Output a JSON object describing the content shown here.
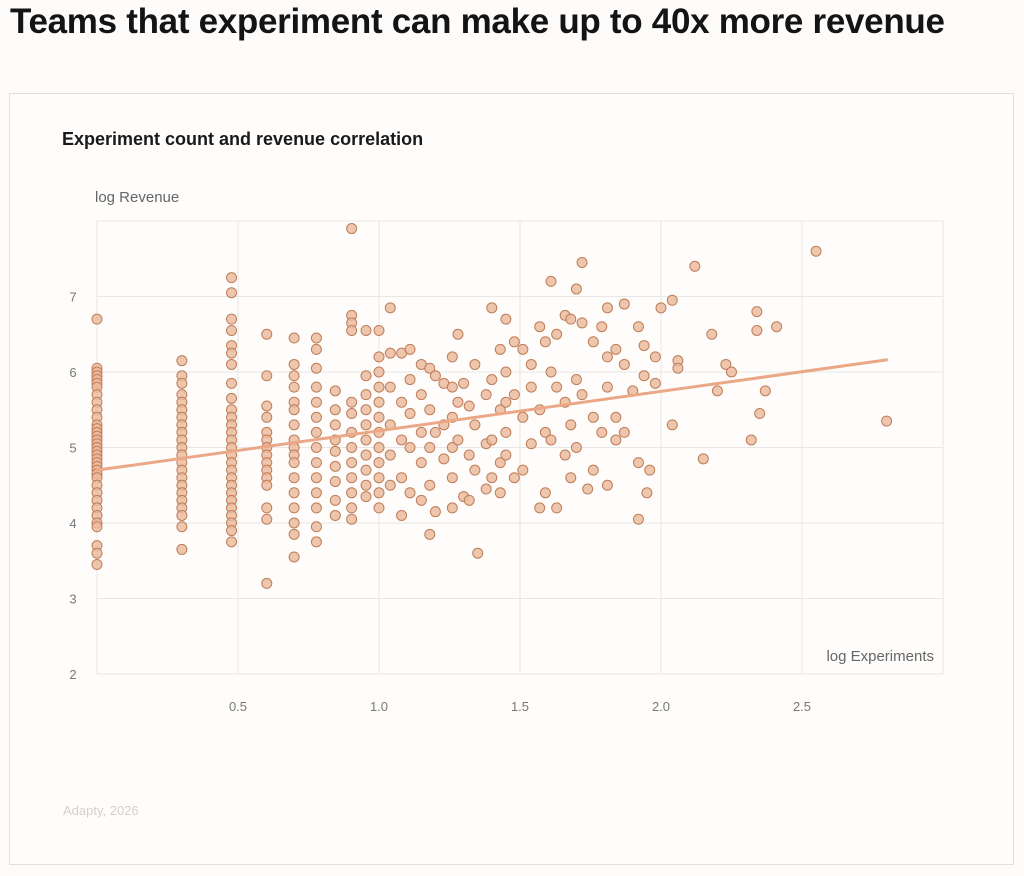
{
  "headline": "Teams that experiment can make up to 40x more revenue",
  "source": "Adapty, 2026",
  "colors": {
    "point_fill": "#ebbb9f",
    "point_stroke": "#bf7d58",
    "trend": "#eba887",
    "grid": "#e8e6e6"
  },
  "chart_data": {
    "type": "scatter",
    "title": "Experiment count and revenue correlation",
    "xlabel": "log Experiments",
    "ylabel": "log Revenue",
    "xlim": [
      0,
      3
    ],
    "ylim": [
      2,
      8
    ],
    "xticks": [
      "0.5",
      "1.0",
      "1.5",
      "2.0",
      "2.5"
    ],
    "yticks": [
      "2",
      "3",
      "4",
      "5",
      "6",
      "7"
    ],
    "grid": true,
    "trendline": {
      "x": [
        0,
        2.8
      ],
      "y": [
        4.7,
        6.16
      ]
    },
    "columns": [
      {
        "x": 0,
        "y": [
          6.7,
          6.05,
          6.0,
          5.95,
          5.9,
          5.85,
          5.8,
          5.7,
          5.6,
          5.5,
          5.4,
          5.3,
          5.25,
          5.2,
          5.15,
          5.1,
          5.05,
          5.0,
          4.95,
          4.9,
          4.85,
          4.8,
          4.75,
          4.7,
          4.65,
          4.6,
          4.5,
          4.4,
          4.3,
          4.2,
          4.1,
          4.0,
          3.95,
          3.7,
          3.6,
          3.45
        ]
      },
      {
        "x": 0.301,
        "y": [
          6.15,
          5.95,
          5.85,
          5.7,
          5.6,
          5.5,
          5.4,
          5.3,
          5.2,
          5.1,
          5.0,
          4.9,
          4.8,
          4.7,
          4.6,
          4.5,
          4.4,
          4.3,
          4.2,
          4.1,
          3.95,
          3.65
        ]
      },
      {
        "x": 0.477,
        "y": [
          7.25,
          7.05,
          6.7,
          6.55,
          6.35,
          6.25,
          6.1,
          5.85,
          5.65,
          5.5,
          5.4,
          5.3,
          5.2,
          5.1,
          5.0,
          4.9,
          4.8,
          4.7,
          4.6,
          4.5,
          4.4,
          4.3,
          4.2,
          4.1,
          4.0,
          3.9,
          3.75
        ]
      },
      {
        "x": 0.602,
        "y": [
          6.5,
          5.95,
          5.55,
          5.4,
          5.2,
          5.1,
          5.0,
          4.9,
          4.8,
          4.7,
          4.6,
          4.5,
          4.2,
          4.05,
          3.2
        ]
      },
      {
        "x": 0.699,
        "y": [
          6.45,
          6.1,
          5.95,
          5.8,
          5.6,
          5.5,
          5.3,
          5.1,
          5.0,
          4.9,
          4.8,
          4.6,
          4.4,
          4.2,
          4.0,
          3.85,
          3.55
        ]
      },
      {
        "x": 0.778,
        "y": [
          6.45,
          6.3,
          6.05,
          5.8,
          5.6,
          5.4,
          5.2,
          5.0,
          4.8,
          4.6,
          4.4,
          4.2,
          3.95,
          3.75
        ]
      },
      {
        "x": 0.845,
        "y": [
          5.75,
          5.5,
          5.3,
          5.1,
          4.95,
          4.75,
          4.55,
          4.3,
          4.1
        ]
      },
      {
        "x": 0.903,
        "y": [
          7.9,
          6.75,
          6.65,
          6.55,
          5.6,
          5.45,
          5.2,
          5.0,
          4.8,
          4.6,
          4.4,
          4.2,
          4.05
        ]
      },
      {
        "x": 0.954,
        "y": [
          6.55,
          5.95,
          5.7,
          5.5,
          5.3,
          5.1,
          4.9,
          4.7,
          4.5,
          4.35
        ]
      },
      {
        "x": 1.0,
        "y": [
          6.55,
          6.2,
          6.0,
          5.8,
          5.6,
          5.4,
          5.2,
          5.0,
          4.8,
          4.6,
          4.4,
          4.2
        ]
      }
    ],
    "points": [
      [
        1.04,
        6.85
      ],
      [
        1.04,
        6.25
      ],
      [
        1.04,
        5.8
      ],
      [
        1.04,
        5.3
      ],
      [
        1.04,
        4.9
      ],
      [
        1.04,
        4.5
      ],
      [
        1.08,
        6.25
      ],
      [
        1.08,
        5.6
      ],
      [
        1.08,
        5.1
      ],
      [
        1.08,
        4.6
      ],
      [
        1.08,
        4.1
      ],
      [
        1.11,
        6.3
      ],
      [
        1.11,
        5.9
      ],
      [
        1.11,
        5.45
      ],
      [
        1.11,
        5.0
      ],
      [
        1.11,
        4.4
      ],
      [
        1.15,
        6.1
      ],
      [
        1.15,
        5.7
      ],
      [
        1.15,
        5.2
      ],
      [
        1.15,
        4.8
      ],
      [
        1.15,
        4.3
      ],
      [
        1.18,
        6.05
      ],
      [
        1.18,
        5.5
      ],
      [
        1.18,
        5.0
      ],
      [
        1.18,
        4.5
      ],
      [
        1.18,
        3.85
      ],
      [
        1.2,
        5.95
      ],
      [
        1.2,
        5.2
      ],
      [
        1.2,
        4.15
      ],
      [
        1.23,
        5.85
      ],
      [
        1.23,
        5.3
      ],
      [
        1.23,
        4.85
      ],
      [
        1.26,
        6.2
      ],
      [
        1.26,
        5.8
      ],
      [
        1.26,
        5.4
      ],
      [
        1.26,
        5.0
      ],
      [
        1.26,
        4.6
      ],
      [
        1.26,
        4.2
      ],
      [
        1.28,
        6.5
      ],
      [
        1.28,
        5.6
      ],
      [
        1.28,
        5.1
      ],
      [
        1.3,
        5.85
      ],
      [
        1.3,
        4.35
      ],
      [
        1.32,
        5.55
      ],
      [
        1.32,
        4.9
      ],
      [
        1.32,
        4.3
      ],
      [
        1.34,
        6.1
      ],
      [
        1.34,
        5.3
      ],
      [
        1.34,
        4.7
      ],
      [
        1.35,
        3.6
      ],
      [
        1.38,
        5.7
      ],
      [
        1.38,
        5.05
      ],
      [
        1.38,
        4.45
      ],
      [
        1.4,
        6.85
      ],
      [
        1.4,
        5.9
      ],
      [
        1.4,
        5.1
      ],
      [
        1.4,
        4.6
      ],
      [
        1.43,
        6.3
      ],
      [
        1.43,
        5.5
      ],
      [
        1.43,
        4.8
      ],
      [
        1.43,
        4.4
      ],
      [
        1.45,
        6.7
      ],
      [
        1.45,
        6.0
      ],
      [
        1.45,
        5.6
      ],
      [
        1.45,
        5.2
      ],
      [
        1.45,
        4.9
      ],
      [
        1.48,
        6.4
      ],
      [
        1.48,
        5.7
      ],
      [
        1.48,
        4.6
      ],
      [
        1.51,
        6.3
      ],
      [
        1.51,
        5.4
      ],
      [
        1.51,
        4.7
      ],
      [
        1.54,
        6.1
      ],
      [
        1.54,
        5.8
      ],
      [
        1.54,
        5.05
      ],
      [
        1.57,
        6.6
      ],
      [
        1.57,
        5.5
      ],
      [
        1.57,
        4.2
      ],
      [
        1.59,
        6.4
      ],
      [
        1.59,
        5.2
      ],
      [
        1.59,
        4.4
      ],
      [
        1.61,
        7.2
      ],
      [
        1.61,
        6.0
      ],
      [
        1.61,
        5.1
      ],
      [
        1.63,
        6.5
      ],
      [
        1.63,
        5.8
      ],
      [
        1.63,
        4.2
      ],
      [
        1.66,
        6.75
      ],
      [
        1.66,
        5.6
      ],
      [
        1.66,
        4.9
      ],
      [
        1.68,
        6.7
      ],
      [
        1.68,
        5.3
      ],
      [
        1.68,
        4.6
      ],
      [
        1.7,
        7.1
      ],
      [
        1.7,
        5.9
      ],
      [
        1.7,
        5.0
      ],
      [
        1.72,
        7.45
      ],
      [
        1.72,
        6.65
      ],
      [
        1.72,
        5.7
      ],
      [
        1.74,
        4.45
      ],
      [
        1.76,
        6.4
      ],
      [
        1.76,
        5.4
      ],
      [
        1.76,
        4.7
      ],
      [
        1.79,
        6.6
      ],
      [
        1.79,
        5.2
      ],
      [
        1.81,
        6.85
      ],
      [
        1.81,
        6.2
      ],
      [
        1.81,
        5.8
      ],
      [
        1.81,
        4.5
      ],
      [
        1.84,
        6.3
      ],
      [
        1.84,
        5.4
      ],
      [
        1.84,
        5.1
      ],
      [
        1.87,
        6.9
      ],
      [
        1.87,
        6.1
      ],
      [
        1.87,
        5.2
      ],
      [
        1.9,
        5.75
      ],
      [
        1.92,
        6.6
      ],
      [
        1.92,
        4.8
      ],
      [
        1.92,
        4.05
      ],
      [
        1.94,
        6.35
      ],
      [
        1.94,
        5.95
      ],
      [
        1.95,
        4.4
      ],
      [
        1.96,
        4.7
      ],
      [
        1.98,
        6.2
      ],
      [
        1.98,
        5.85
      ],
      [
        2.0,
        6.85
      ],
      [
        2.04,
        6.95
      ],
      [
        2.04,
        5.3
      ],
      [
        2.06,
        6.15
      ],
      [
        2.06,
        6.05
      ],
      [
        2.12,
        7.4
      ],
      [
        2.15,
        4.85
      ],
      [
        2.18,
        6.5
      ],
      [
        2.2,
        5.75
      ],
      [
        2.23,
        6.1
      ],
      [
        2.25,
        6.0
      ],
      [
        2.32,
        5.1
      ],
      [
        2.34,
        6.8
      ],
      [
        2.34,
        6.55
      ],
      [
        2.35,
        5.45
      ],
      [
        2.37,
        5.75
      ],
      [
        2.41,
        6.6
      ],
      [
        2.55,
        7.6
      ],
      [
        2.8,
        5.35
      ]
    ]
  }
}
